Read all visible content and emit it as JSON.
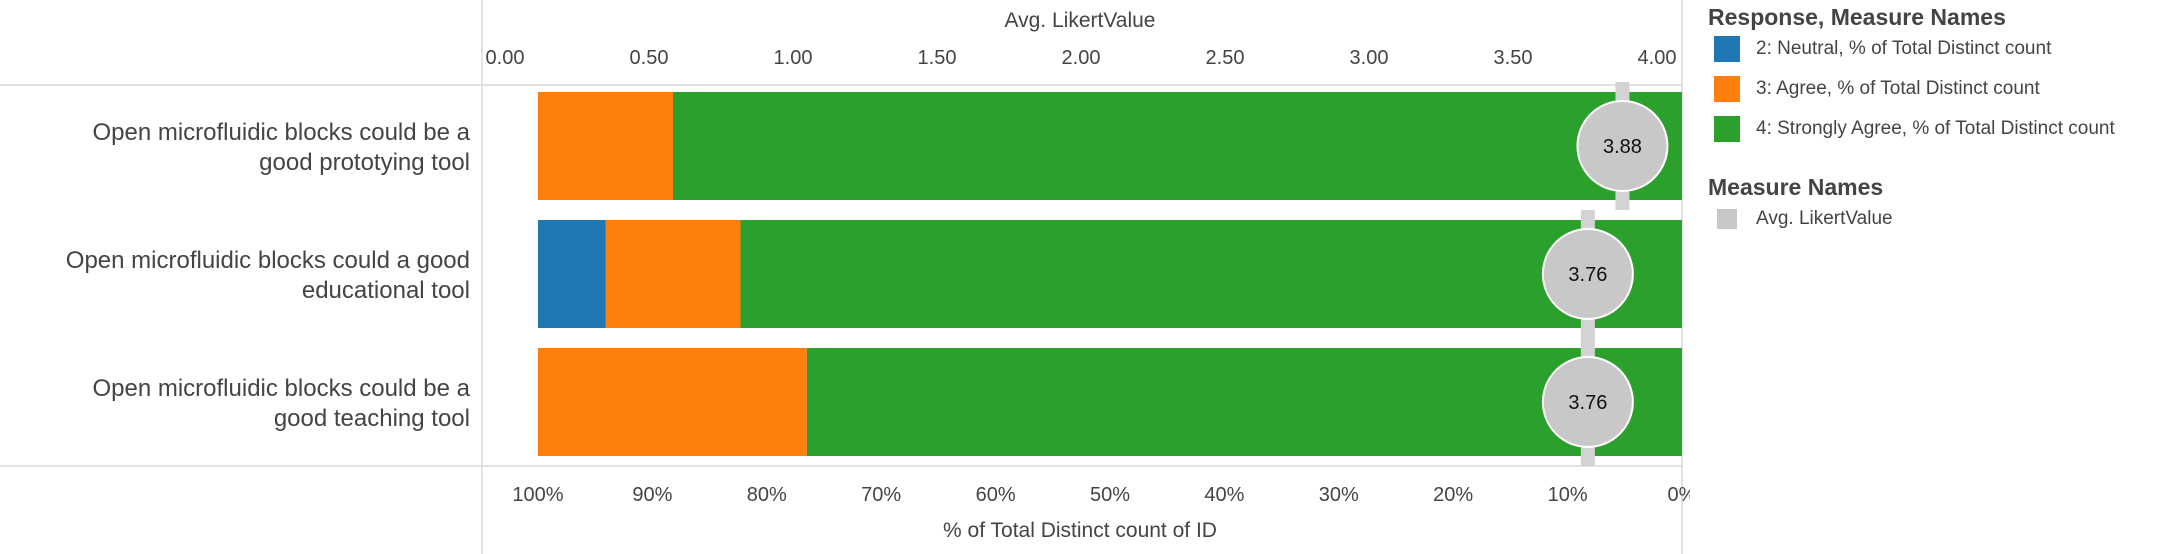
{
  "chart_data": {
    "type": "bar",
    "orientation": "horizontal",
    "stacked": true,
    "top_axis": {
      "title": "Avg. LikertValue",
      "ticks": [
        "0.00",
        "0.50",
        "1.00",
        "1.50",
        "2.00",
        "2.50",
        "3.00",
        "3.50",
        "4.00"
      ],
      "range": [
        0,
        4
      ]
    },
    "bottom_axis": {
      "title": "% of Total Distinct count of ID",
      "ticks": [
        "100%",
        "90%",
        "80%",
        "70%",
        "60%",
        "50%",
        "40%",
        "30%",
        "20%",
        "10%",
        "0%"
      ],
      "range": [
        100,
        0
      ]
    },
    "categories": [
      "Open microfluidic blocks could be a good prototying tool",
      "Open microfluidic blocks could a good educational tool",
      "Open microfluidic blocks could be a good teaching tool"
    ],
    "category_lines": [
      [
        "Open microfluidic blocks could be a",
        "good prototying tool"
      ],
      [
        "Open microfluidic blocks could a good",
        "educational tool"
      ],
      [
        "Open microfluidic blocks could be a",
        "good teaching tool"
      ]
    ],
    "series": [
      {
        "name": "2: Neutral, % of Total Distinct count",
        "color": "#1f77b4",
        "values": [
          0,
          5.9,
          0
        ]
      },
      {
        "name": "3: Agree, % of Total Distinct count",
        "color": "#ff7f0e",
        "values": [
          11.8,
          11.8,
          23.5
        ]
      },
      {
        "name": "4: Strongly Agree, % of Total Distinct count",
        "color": "#2ca02c",
        "values": [
          88.2,
          82.3,
          76.5
        ]
      }
    ],
    "avg_likert": {
      "name": "Avg. LikertValue",
      "color": "#c8c8c8",
      "values": [
        3.88,
        3.76,
        3.76
      ],
      "labels": [
        "3.88",
        "3.76",
        "3.76"
      ]
    },
    "legend": {
      "title1": "Response, Measure Names",
      "title2": "Measure Names",
      "placement": "right"
    }
  }
}
